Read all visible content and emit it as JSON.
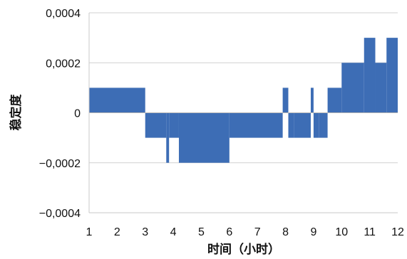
{
  "chart_data": {
    "type": "area",
    "title": "",
    "xlabel": "时间（小时）",
    "ylabel": "稳定度",
    "xlim": [
      1,
      12
    ],
    "ylim": [
      -0.0004,
      0.0004
    ],
    "x_ticks": [
      {
        "value": 1,
        "label": "1"
      },
      {
        "value": 2,
        "label": "2"
      },
      {
        "value": 3,
        "label": "3"
      },
      {
        "value": 4,
        "label": "4"
      },
      {
        "value": 5,
        "label": "5"
      },
      {
        "value": 6,
        "label": "6"
      },
      {
        "value": 7,
        "label": "7"
      },
      {
        "value": 8,
        "label": "8"
      },
      {
        "value": 9,
        "label": "9"
      },
      {
        "value": 10,
        "label": "10"
      },
      {
        "value": 11,
        "label": "11"
      },
      {
        "value": 12,
        "label": "12"
      }
    ],
    "y_ticks": [
      {
        "value": 0.0004,
        "label": "0,0004"
      },
      {
        "value": 0.0002,
        "label": "0,0002"
      },
      {
        "value": 0,
        "label": "0"
      },
      {
        "value": -0.0002,
        "label": "−0,0002"
      },
      {
        "value": -0.0004,
        "label": "−0,0004"
      }
    ],
    "grid": "horizontal",
    "legend": "none",
    "color": "#3d6db5",
    "series": [
      {
        "segments": [
          {
            "x0": 1.0,
            "x1": 3.0,
            "y": 0.0001
          },
          {
            "x0": 3.0,
            "x1": 3.75,
            "y": -0.0001
          },
          {
            "x0": 3.75,
            "x1": 3.85,
            "y": -0.0002
          },
          {
            "x0": 3.85,
            "x1": 4.2,
            "y": -0.0001
          },
          {
            "x0": 4.2,
            "x1": 6.0,
            "y": -0.0002
          },
          {
            "x0": 6.0,
            "x1": 7.9,
            "y": -0.0001
          },
          {
            "x0": 7.9,
            "x1": 8.1,
            "y": 0.0001
          },
          {
            "x0": 8.1,
            "x1": 8.3,
            "y": -0.0001
          },
          {
            "x0": 8.3,
            "x1": 8.9,
            "y": -0.0001
          },
          {
            "x0": 8.9,
            "x1": 9.0,
            "y": 0.0001
          },
          {
            "x0": 9.0,
            "x1": 9.2,
            "y": -0.0001
          },
          {
            "x0": 9.2,
            "x1": 9.5,
            "y": -0.0001
          },
          {
            "x0": 9.5,
            "x1": 10.0,
            "y": 0.0001
          },
          {
            "x0": 10.0,
            "x1": 10.8,
            "y": 0.0002
          },
          {
            "x0": 10.8,
            "x1": 11.2,
            "y": 0.0003
          },
          {
            "x0": 11.2,
            "x1": 11.6,
            "y": 0.0002
          },
          {
            "x0": 11.6,
            "x1": 12.0,
            "y": 0.0003
          }
        ]
      }
    ]
  }
}
